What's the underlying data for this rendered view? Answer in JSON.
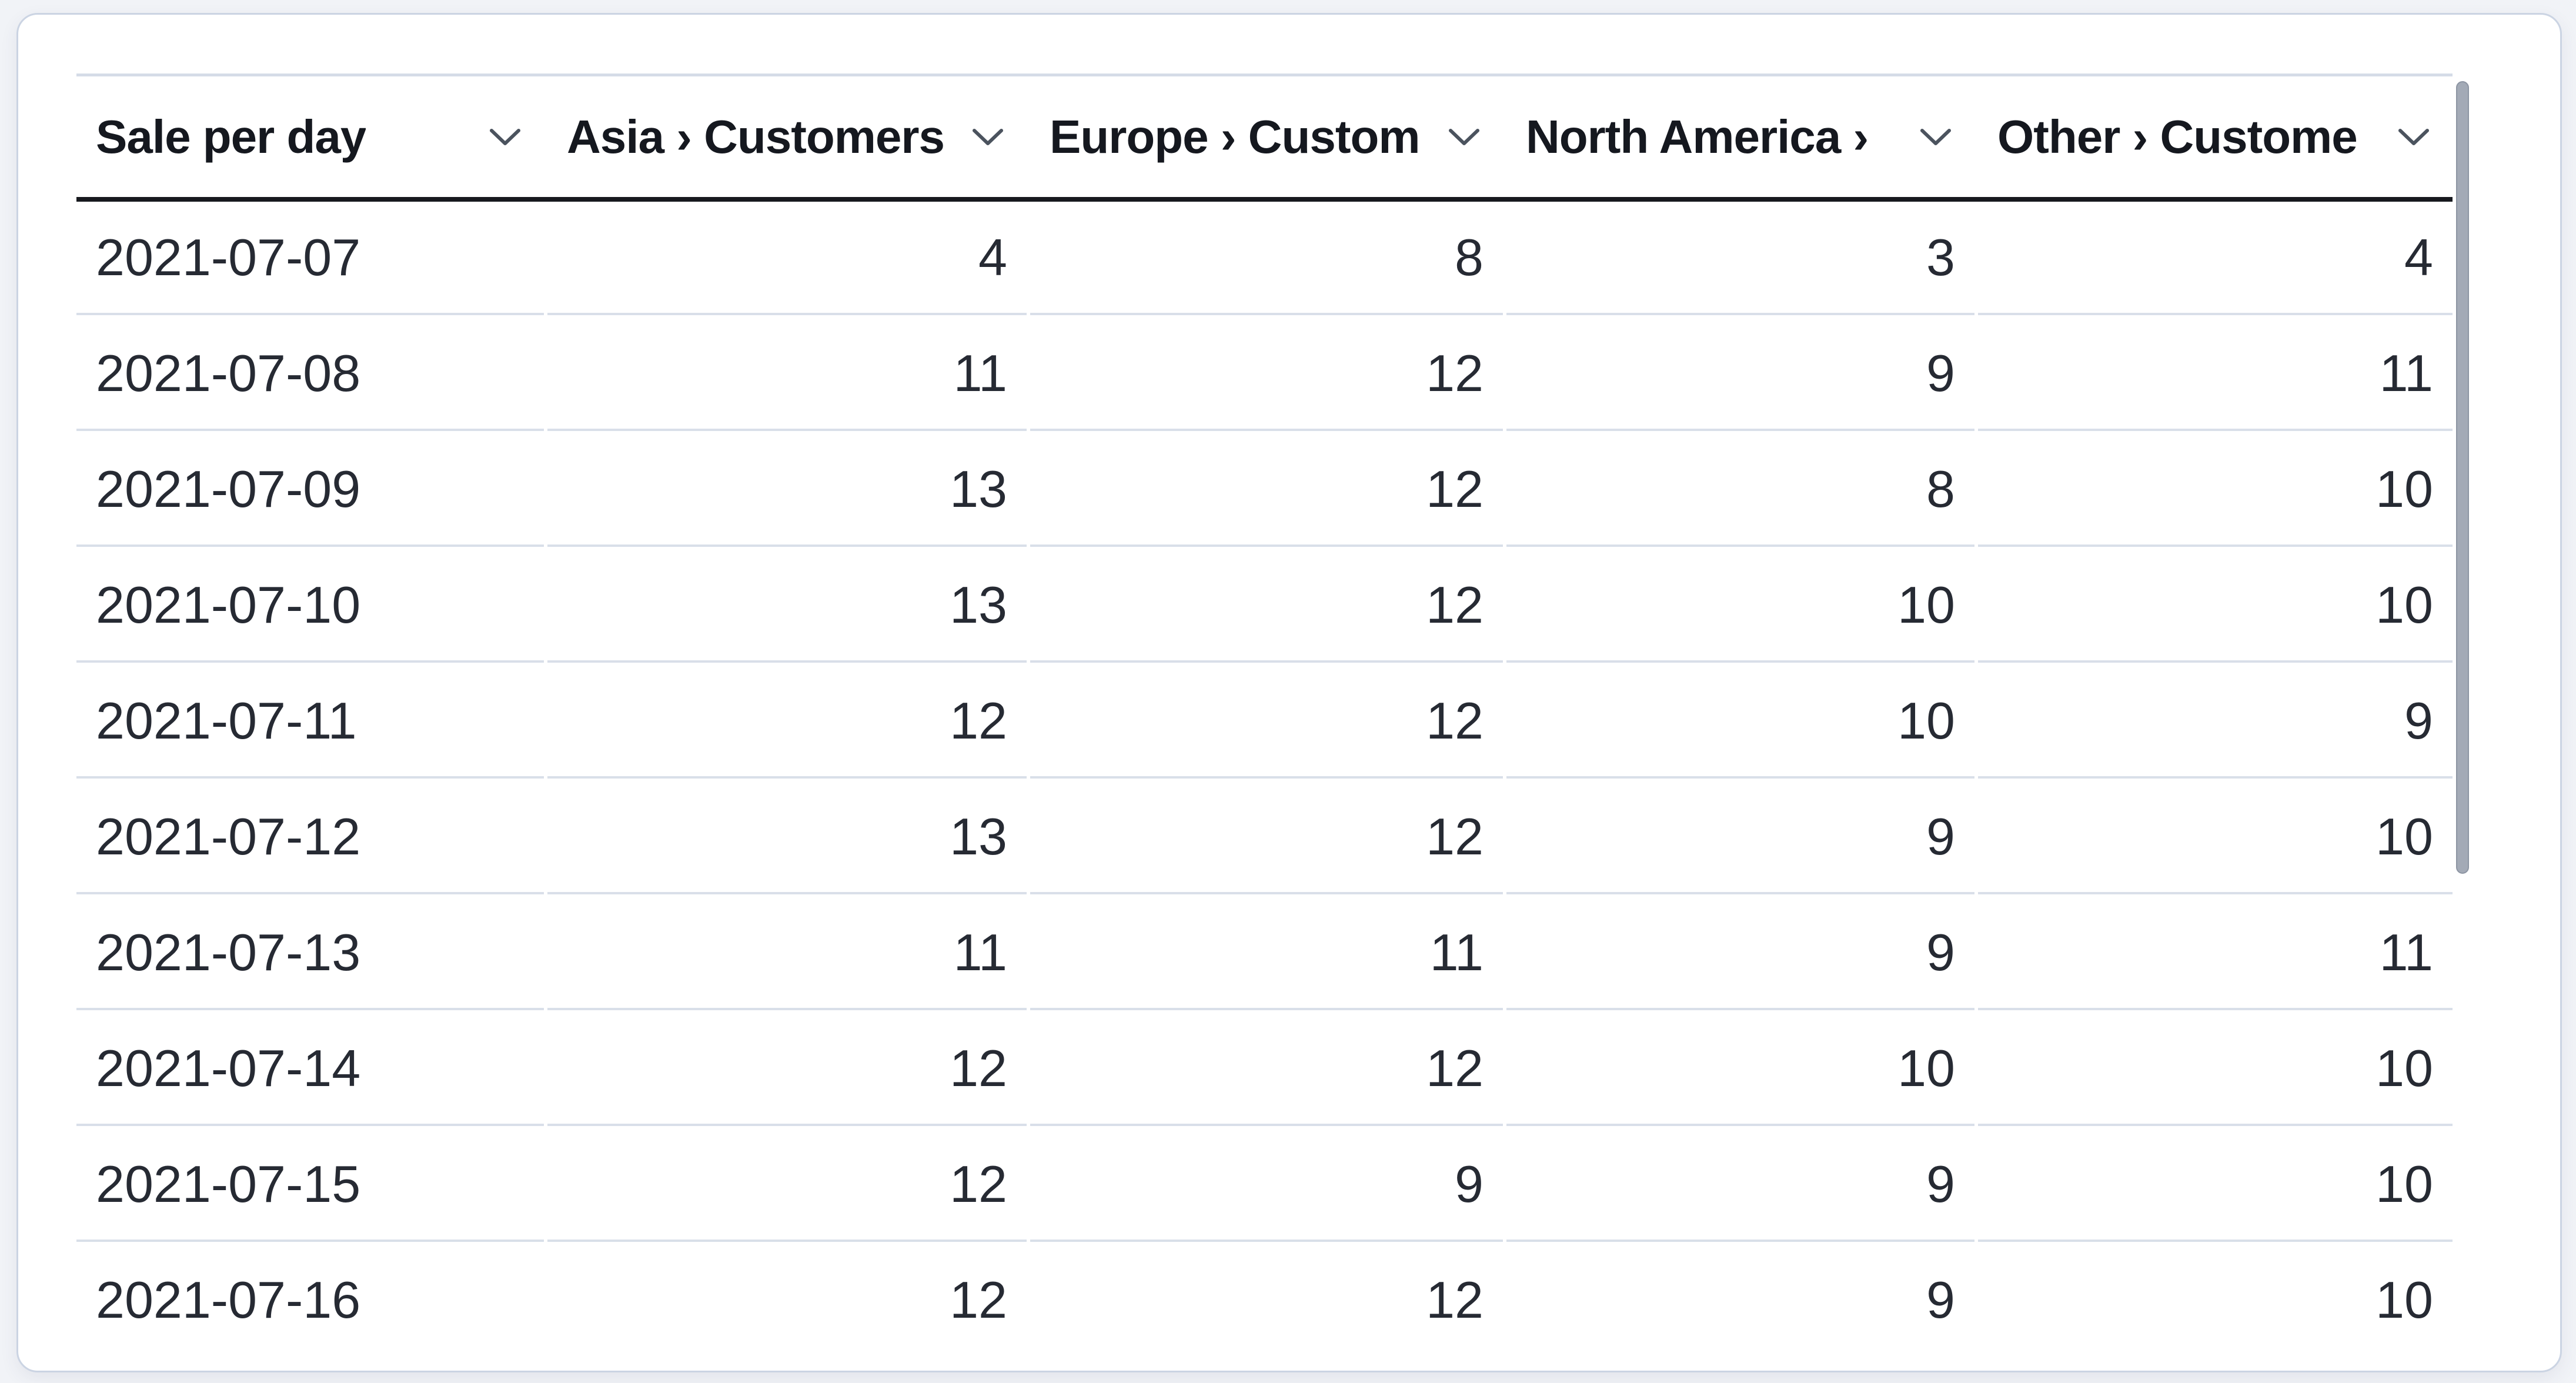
{
  "table": {
    "columns": [
      {
        "id": "date",
        "label": "Sale per day",
        "align": "left"
      },
      {
        "id": "asia",
        "label": "Asia › Customers",
        "align": "right"
      },
      {
        "id": "europe",
        "label": "Europe › Custom",
        "align": "right"
      },
      {
        "id": "north_america",
        "label": "North America ›",
        "align": "right"
      },
      {
        "id": "other",
        "label": "Other › Custome",
        "align": "right"
      }
    ],
    "rows": [
      [
        "2021-07-07",
        4,
        8,
        3,
        4
      ],
      [
        "2021-07-08",
        11,
        12,
        9,
        11
      ],
      [
        "2021-07-09",
        13,
        12,
        8,
        10
      ],
      [
        "2021-07-10",
        13,
        12,
        10,
        10
      ],
      [
        "2021-07-11",
        12,
        12,
        10,
        9
      ],
      [
        "2021-07-12",
        13,
        12,
        9,
        10
      ],
      [
        "2021-07-13",
        11,
        11,
        9,
        11
      ],
      [
        "2021-07-14",
        12,
        12,
        10,
        10
      ],
      [
        "2021-07-15",
        12,
        9,
        9,
        10
      ],
      [
        "2021-07-16",
        12,
        12,
        9,
        10
      ]
    ]
  },
  "icons": {
    "column_menu": "chevron-down-icon"
  },
  "scrollbar": {
    "orientation": "vertical"
  },
  "colors": {
    "text_body": "#262a33",
    "text_header": "#15181f",
    "header_rule": "#17191e",
    "table_top_rule": "#d5dce7",
    "row_divider": "#d9dfe9",
    "card_border": "#cbd4e3",
    "page_background": "#f1f3f7",
    "scrollbar_thumb": "#a3aab6"
  }
}
